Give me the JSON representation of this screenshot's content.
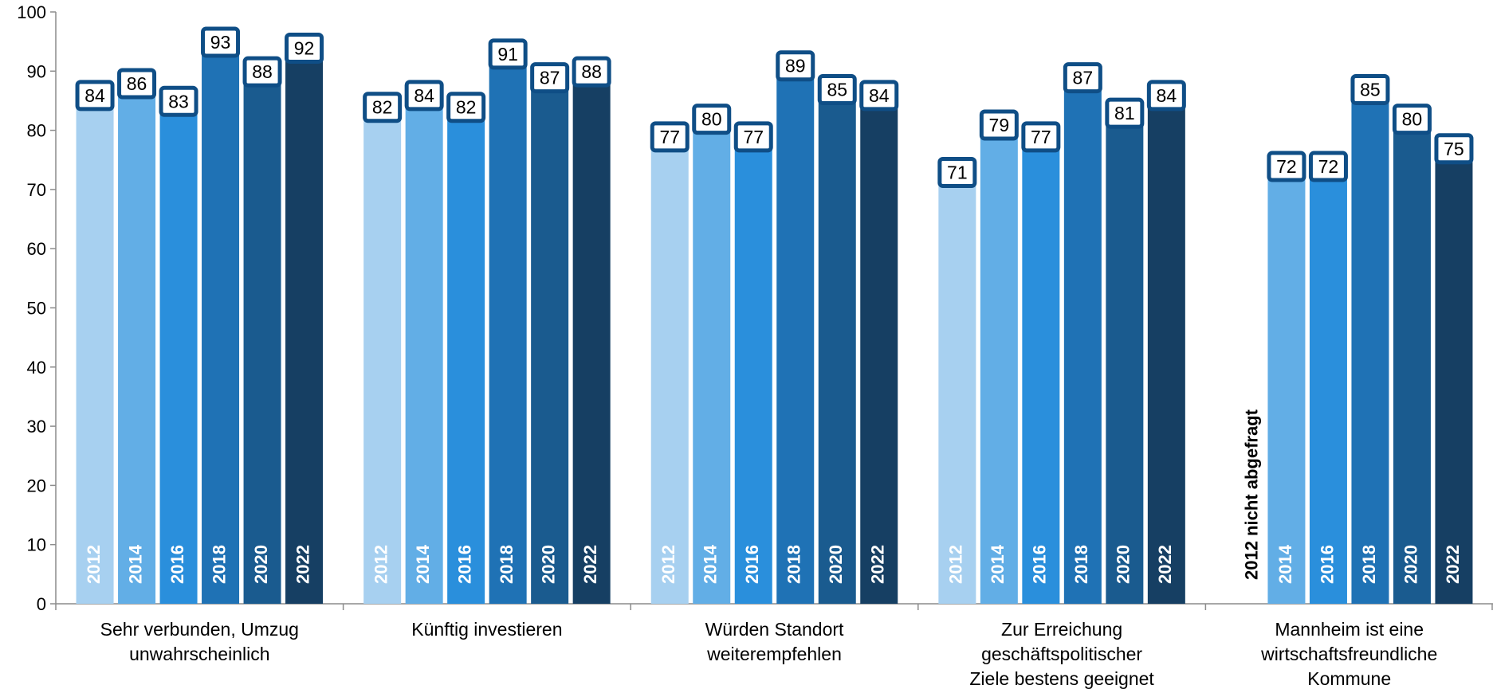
{
  "chart_data": {
    "type": "bar",
    "ylim": [
      0,
      100
    ],
    "yticks": [
      0,
      10,
      20,
      30,
      40,
      50,
      60,
      70,
      80,
      90,
      100
    ],
    "grid": false,
    "legend": "none",
    "years": [
      "2012",
      "2014",
      "2016",
      "2018",
      "2020",
      "2022"
    ],
    "colors": [
      "#a7d0f0",
      "#62aee6",
      "#2a8fdc",
      "#1f72b5",
      "#1a5b8f",
      "#163f63"
    ],
    "label_border_color": "#0f4e86",
    "groups": [
      {
        "label_lines": [
          "Sehr verbunden, Umzug",
          "unwahrscheinlich"
        ],
        "values": [
          84,
          86,
          83,
          93,
          88,
          92
        ],
        "labels": [
          "84",
          "86",
          "83",
          "93",
          "88",
          "92"
        ]
      },
      {
        "label_lines": [
          "Künftig investieren"
        ],
        "values": [
          82,
          84,
          82,
          91,
          87,
          88
        ],
        "labels": [
          "82",
          "84",
          "82",
          "91",
          "87",
          "88"
        ]
      },
      {
        "label_lines": [
          "Würden Standort",
          "weiterempfehlen"
        ],
        "values": [
          77,
          80,
          77,
          89,
          85,
          84
        ],
        "labels": [
          "77",
          "80",
          "77",
          "89",
          "85",
          "84"
        ]
      },
      {
        "label_lines": [
          "Zur Erreichung",
          "geschäftspolitischer",
          "Ziele bestens geeignet"
        ],
        "values": [
          71,
          79,
          77,
          87,
          81,
          84
        ],
        "labels": [
          "71",
          "79",
          "77",
          "87",
          "81",
          "84"
        ]
      },
      {
        "label_lines": [
          "Mannheim ist eine",
          "wirtschaftsfreundliche",
          "Kommune"
        ],
        "values": [
          null,
          72,
          72,
          85,
          80,
          75
        ],
        "labels": [
          "",
          "72",
          "72",
          "85",
          "80",
          "75"
        ],
        "note": "2012 nicht abgefragt"
      }
    ]
  }
}
